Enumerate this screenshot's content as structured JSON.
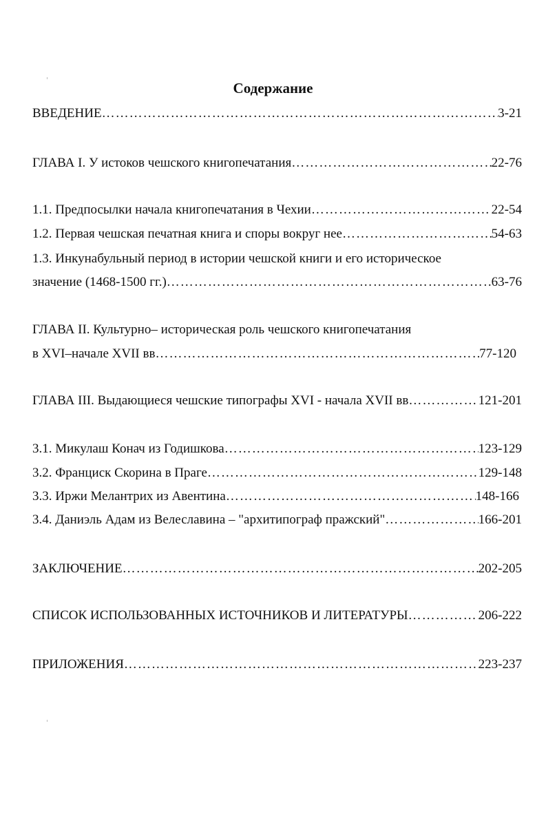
{
  "title": "Содержание",
  "entries": [
    {
      "text": "ВВЕДЕНИЕ",
      "pages": "3-21"
    },
    {
      "text": "ГЛАВА I. У истоков чешского книгопечатания",
      "pages": "22-76"
    },
    {
      "text": "1.1. Предпосылки начала книгопечатания в Чехии",
      "pages": "22-54"
    },
    {
      "text": "1.2. Первая чешская печатная книга и споры вокруг нее",
      "pages": "54-63"
    },
    {
      "first_line": "1.3. Инкунабульный период в истории чешской книги и его историческое",
      "text": "значение (1468-1500 гг.)",
      "pages": "63-76"
    },
    {
      "first_line": "ГЛАВА II. Культурно– историческая роль чешского книгопечатания",
      "text": "в XVI–начале XVII вв",
      "pages": "77-120"
    },
    {
      "text": "ГЛАВА III. Выдающиеся чешские типографы XVI - начала XVII вв",
      "pages": "121-201"
    },
    {
      "text": "3.1. Микулаш Конач из Годишкова",
      "pages": "123-129"
    },
    {
      "text": "3.2. Франциск Скорина в Праге",
      "pages": "129-148"
    },
    {
      "text": "3.3. Иржи Мелантрих из Авентина",
      "pages": "148-166"
    },
    {
      "text": "3.4. Даниэль Адам из Велеславина – \"архитипограф пражский\"",
      "pages": "166-201"
    },
    {
      "text": "ЗАКЛЮЧЕНИЕ",
      "pages": "202-205"
    },
    {
      "text": "СПИСОК ИСПОЛЬЗОВАННЫХ ИСТОЧНИКОВ И ЛИТЕРАТУРЫ",
      "pages": "206-222"
    },
    {
      "text": "ПРИЛОЖЕНИЯ",
      "pages": "223-237"
    }
  ]
}
